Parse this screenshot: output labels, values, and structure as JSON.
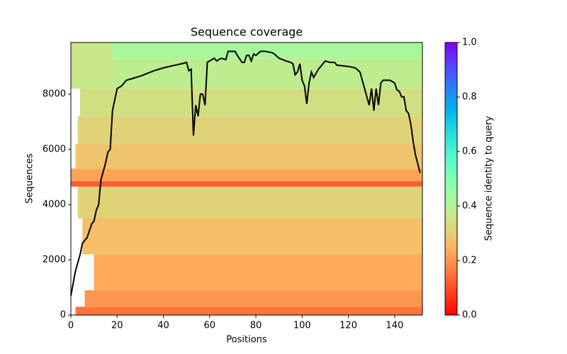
{
  "chart_data": {
    "type": "coverage",
    "title": "Sequence coverage",
    "xlabel": "Positions",
    "ylabel": "Sequences",
    "xlim": [
      0,
      152
    ],
    "ylim": [
      0,
      9870
    ],
    "xticks": [
      0,
      20,
      40,
      60,
      80,
      100,
      120,
      140
    ],
    "yticks": [
      0,
      2000,
      4000,
      6000,
      8000
    ],
    "colorbar": {
      "label": "Sequence identity to query",
      "colormap": "rainbow_r",
      "clim": [
        0,
        1
      ],
      "ticks": [
        {
          "value": 0,
          "label": "0.0"
        },
        0.2,
        0.4,
        0.6,
        0.8,
        {
          "value": 1,
          "label": "1.0"
        }
      ]
    },
    "heatmap": [
      {
        "y": [
          0,
          300
        ],
        "x": [
          2,
          152
        ],
        "identity": 0.15
      },
      {
        "y": [
          300,
          900
        ],
        "x": [
          6,
          152
        ],
        "identity": 0.2
      },
      {
        "y": [
          900,
          2200
        ],
        "x": [
          10,
          152
        ],
        "identity": 0.23
      },
      {
        "y": [
          2200,
          3500
        ],
        "x": [
          5,
          152
        ],
        "identity": 0.27
      },
      {
        "y": [
          3500,
          4650
        ],
        "x": [
          3,
          152
        ],
        "identity": 0.31
      },
      {
        "y": [
          4650,
          4850
        ],
        "x": [
          0,
          152
        ],
        "identity": 0.12
      },
      {
        "y": [
          4850,
          5300
        ],
        "x": [
          0,
          152
        ],
        "identity": 0.22
      },
      {
        "y": [
          5300,
          6200
        ],
        "x": [
          2,
          152
        ],
        "identity": 0.28
      },
      {
        "y": [
          6200,
          7200
        ],
        "x": [
          3,
          152
        ],
        "identity": 0.31
      },
      {
        "y": [
          7200,
          8200
        ],
        "x": [
          4,
          152
        ],
        "identity": 0.34
      },
      {
        "y": [
          8200,
          9300
        ],
        "x": [
          18,
          152
        ],
        "identity": 0.38
      },
      {
        "y": [
          9300,
          9870
        ],
        "x": [
          18,
          152
        ],
        "identity": 0.42
      },
      {
        "y": [
          8200,
          9870
        ],
        "x": [
          0,
          18
        ],
        "identity": 0.36
      }
    ],
    "line": {
      "color": "#000000",
      "x": [
        0,
        2,
        4,
        5,
        7,
        9,
        10,
        11,
        12,
        13,
        14,
        15,
        16,
        17,
        18,
        19,
        20,
        22,
        24,
        26,
        28,
        30,
        33,
        36,
        40,
        44,
        48,
        50,
        51,
        52,
        53,
        54,
        55,
        56,
        57,
        58,
        59,
        62,
        63,
        65,
        67,
        68,
        71,
        72,
        74,
        75,
        76,
        77,
        78,
        79,
        80,
        82,
        84,
        87,
        88,
        90,
        93,
        95,
        96,
        97,
        98,
        99,
        100,
        101,
        102,
        103,
        104,
        105,
        107,
        109,
        110,
        112,
        114,
        115,
        120,
        123,
        125,
        127,
        129,
        130,
        131,
        132,
        133,
        134,
        135,
        138,
        140,
        141,
        142,
        143,
        144,
        145,
        146,
        147,
        148,
        149,
        151
      ],
      "values": [
        700,
        1600,
        2200,
        2600,
        2800,
        3300,
        3400,
        3800,
        4000,
        4900,
        5200,
        5500,
        5900,
        6000,
        7400,
        7800,
        8200,
        8300,
        8500,
        8550,
        8600,
        8650,
        8750,
        8850,
        8950,
        9030,
        9100,
        9150,
        8850,
        8900,
        6500,
        7600,
        7200,
        8000,
        8000,
        7600,
        9150,
        9300,
        9200,
        9300,
        9250,
        9550,
        9550,
        9400,
        9150,
        9150,
        9400,
        9400,
        9200,
        9450,
        9400,
        9550,
        9550,
        9500,
        9450,
        9300,
        9200,
        9150,
        9100,
        8700,
        8800,
        9100,
        8500,
        8300,
        7650,
        8400,
        8800,
        8600,
        8900,
        9100,
        9200,
        9150,
        9150,
        9050,
        9000,
        8950,
        8800,
        8200,
        7600,
        8200,
        7400,
        8200,
        7600,
        8400,
        8500,
        8500,
        8400,
        8150,
        8100,
        7900,
        7900,
        7400,
        7300,
        6900,
        6300,
        5800,
        5150
      ]
    }
  }
}
